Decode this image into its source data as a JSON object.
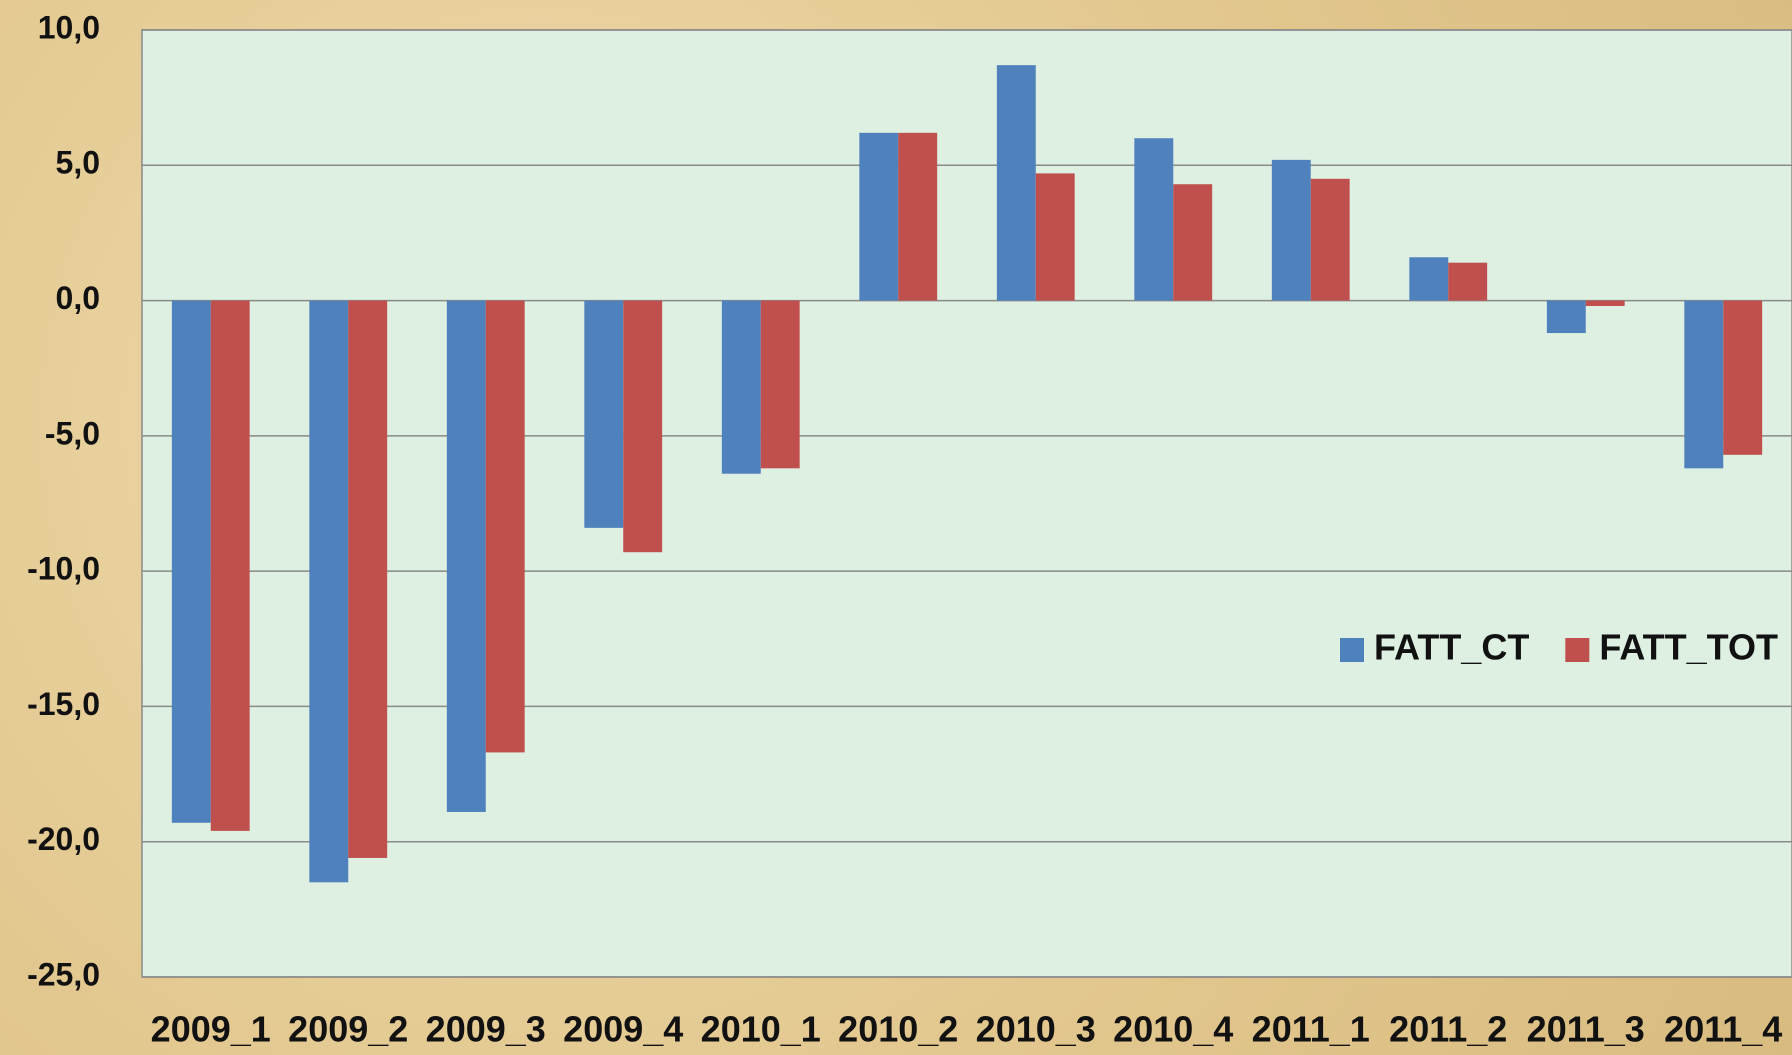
{
  "chart_data": {
    "type": "bar",
    "categories": [
      "2009_1",
      "2009_2",
      "2009_3",
      "2009_4",
      "2010_1",
      "2010_2",
      "2010_3",
      "2010_4",
      "2011_1",
      "2011_2",
      "2011_3",
      "2011_4"
    ],
    "series": [
      {
        "name": "FATT_CT",
        "color": "#4f81bd",
        "values": [
          -19.3,
          -21.5,
          -18.9,
          -8.4,
          -6.4,
          6.2,
          8.7,
          6.0,
          5.2,
          1.6,
          -1.2,
          -6.2
        ]
      },
      {
        "name": "FATT_TOT",
        "color": "#c0504d",
        "values": [
          -19.6,
          -20.6,
          -16.7,
          -9.3,
          -6.2,
          6.2,
          4.7,
          4.3,
          4.5,
          1.4,
          -0.2,
          -5.7
        ]
      }
    ],
    "ylim": [
      -25,
      10
    ],
    "yticks": [
      {
        "value": -25,
        "label": "-25,0"
      },
      {
        "value": -20,
        "label": "-20,0"
      },
      {
        "value": -15,
        "label": "-15,0"
      },
      {
        "value": -10,
        "label": "-10,0"
      },
      {
        "value": -5,
        "label": "-5,0"
      },
      {
        "value": 0,
        "label": "0,0"
      },
      {
        "value": 5,
        "label": "5,0"
      },
      {
        "value": 10,
        "label": "10,0"
      }
    ],
    "grid": true,
    "legend": "right"
  }
}
